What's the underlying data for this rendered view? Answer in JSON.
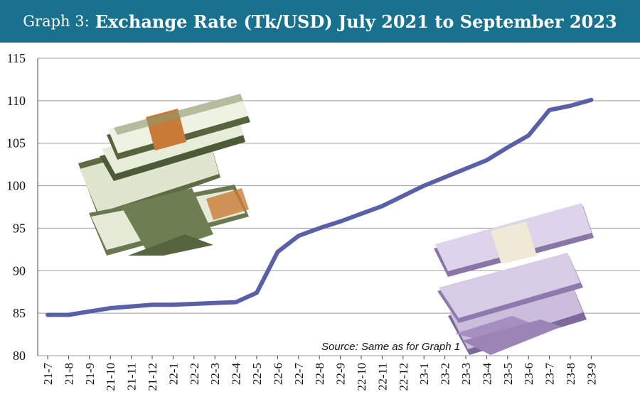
{
  "header": {
    "prefix": "Graph 3:",
    "title": "Exchange Rate (Tk/USD) July 2021 to September 2023"
  },
  "source_note": "Source: Same as for Graph 1",
  "colors": {
    "banner": "#17718f",
    "line": "#5a60a8",
    "grid": "#9a9a9a",
    "usd_bills": "#6f7d52",
    "usd_band": "#c97a36",
    "bdt_notes": "#a58fc0"
  },
  "decorations": [
    "stack-of-us-dollar-bills-icon",
    "stack-of-1000-taka-notes-icon"
  ],
  "chart_data": {
    "type": "line",
    "title": "Exchange Rate (Tk/USD) July 2021 to September 2023",
    "xlabel": "",
    "ylabel": "",
    "ylim": [
      80,
      115
    ],
    "yticks": [
      80,
      85,
      90,
      95,
      100,
      105,
      110,
      115
    ],
    "grid": true,
    "legend": "none",
    "categories": [
      "21-7",
      "21-8",
      "21-9",
      "21-10",
      "21-11",
      "21-12",
      "22-1",
      "22-2",
      "22-3",
      "22-4",
      "22-5",
      "22-6",
      "22-7",
      "22-8",
      "22-9",
      "22-10",
      "22-11",
      "22-12",
      "23-1",
      "23-2",
      "23-3",
      "23-4",
      "23-5",
      "23-6",
      "23-7",
      "23-8",
      "23-9"
    ],
    "series": [
      {
        "values": [
          84.8,
          84.8,
          85.2,
          85.6,
          85.8,
          86.0,
          86.0,
          86.1,
          86.2,
          86.3,
          87.4,
          92.2,
          94.1,
          95.0,
          95.8,
          96.7,
          97.6,
          98.8,
          100.0,
          101.0,
          102.0,
          103.0,
          104.5,
          105.9,
          108.9,
          109.4,
          110.1
        ]
      }
    ]
  }
}
